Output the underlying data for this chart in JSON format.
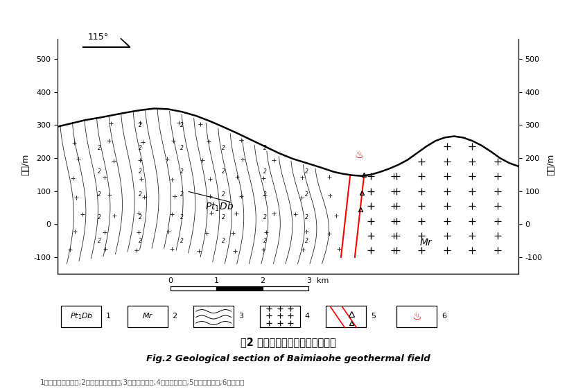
{
  "title_cn": "图2 白庙河地热田地热地质剖面图",
  "title_en": "Fig.2 Geological section of Baimiaohe geothermal field",
  "caption": "1．早元古界大别群;2．时代不明花岗岩;3．二长片麻岩;4．混合花岗岩;5．断裂破碎带;6．温泉。",
  "ylabel_left": "高程/m",
  "ylabel_right": "高程/m",
  "ylim": [
    -150,
    560
  ],
  "yticks": [
    -100,
    0,
    100,
    200,
    300,
    400,
    500
  ],
  "bg_color": "#ffffff",
  "compass_text": "115°",
  "label_ptdb": "Pt₁Db",
  "label_mr": "Mr"
}
